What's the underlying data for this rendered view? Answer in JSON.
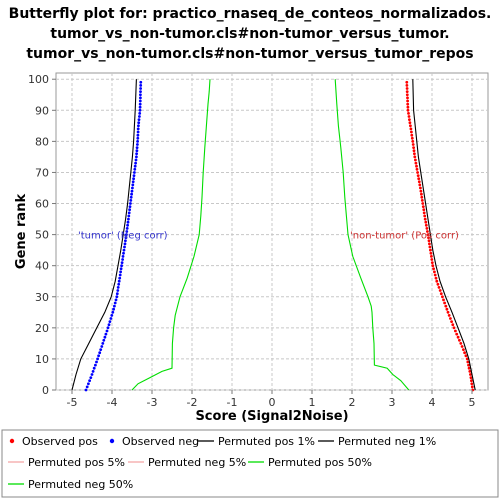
{
  "chart_data": {
    "type": "line",
    "title": [
      "Butterfly plot for: practico_rnaseq_de_conteos_normalizados.",
      "tumor_vs_non-tumor.cls#non-tumor_versus_tumor.",
      "tumor_vs_non-tumor.cls#non-tumor_versus_tumor_repos"
    ],
    "xlabel": "Score (Signal2Noise)",
    "ylabel": "Gene rank",
    "xlim": [
      -5.4,
      5.4
    ],
    "ylim": [
      0,
      102
    ],
    "xticks": [
      -5,
      -4,
      -3,
      -2,
      -1,
      0,
      1,
      2,
      3,
      4,
      5
    ],
    "yticks": [
      0,
      10,
      20,
      30,
      40,
      50,
      60,
      70,
      80,
      90,
      100
    ],
    "grid": true,
    "annotations": [
      {
        "text": "'tumor' (Neg corr)",
        "x": -4.85,
        "y": 50,
        "color": "#3333cc"
      },
      {
        "text": "'non-tumor' (Pos corr)",
        "x": 1.95,
        "y": 50,
        "color": "#cc3333"
      }
    ],
    "legend_position": "bottom",
    "series": [
      {
        "name": "Observed pos",
        "style": "points",
        "color": "#ff0000",
        "x": [
          5.02,
          4.96,
          4.88,
          4.72,
          4.55,
          4.4,
          4.26,
          4.12,
          4.02,
          3.96,
          3.9,
          3.83,
          3.77,
          3.71,
          3.64,
          3.57,
          3.52,
          3.46,
          3.4,
          3.37
        ],
        "y": [
          0,
          5,
          10,
          15,
          20,
          25,
          30,
          35,
          40,
          45,
          50,
          55,
          60,
          65,
          70,
          75,
          80,
          85,
          90,
          99
        ]
      },
      {
        "name": "Observed neg",
        "style": "points",
        "color": "#0000ff",
        "x": [
          -4.65,
          -4.5,
          -4.36,
          -4.23,
          -4.1,
          -3.98,
          -3.88,
          -3.82,
          -3.76,
          -3.7,
          -3.64,
          -3.59,
          -3.54,
          -3.49,
          -3.44,
          -3.39,
          -3.36,
          -3.34,
          -3.3,
          -3.28
        ],
        "y": [
          0,
          5,
          10,
          15,
          20,
          25,
          30,
          35,
          40,
          45,
          50,
          55,
          60,
          65,
          70,
          75,
          80,
          85,
          90,
          99
        ]
      },
      {
        "name": "Permuted pos 1%",
        "style": "line",
        "color": "#000000",
        "x": [
          5.08,
          5.0,
          4.92,
          4.8,
          4.65,
          4.5,
          4.34,
          4.2,
          4.1,
          4.02,
          3.96,
          3.9,
          3.84,
          3.78,
          3.72,
          3.66,
          3.62,
          3.58,
          3.54,
          3.52
        ],
        "y": [
          0,
          5,
          10,
          15,
          20,
          25,
          30,
          35,
          40,
          45,
          50,
          55,
          60,
          65,
          70,
          75,
          80,
          85,
          90,
          100
        ]
      },
      {
        "name": "Permuted neg 1%",
        "style": "line",
        "color": "#000000",
        "x": [
          -5.0,
          -4.9,
          -4.78,
          -4.58,
          -4.38,
          -4.18,
          -4.02,
          -3.92,
          -3.85,
          -3.78,
          -3.72,
          -3.66,
          -3.61,
          -3.57,
          -3.53,
          -3.49,
          -3.46,
          -3.44,
          -3.42,
          -3.39
        ],
        "y": [
          0,
          5,
          10,
          15,
          20,
          25,
          30,
          35,
          40,
          45,
          50,
          55,
          60,
          65,
          70,
          75,
          80,
          85,
          90,
          100
        ]
      },
      {
        "name": "Permuted pos 5%",
        "style": "line",
        "color": "#f4a8a8",
        "x": [],
        "y": []
      },
      {
        "name": "Permuted neg 5%",
        "style": "line",
        "color": "#f4a8a8",
        "x": [],
        "y": []
      },
      {
        "name": "Permuted pos 50%",
        "style": "line",
        "color": "#00dd00",
        "x": [
          3.42,
          3.22,
          3.02,
          2.88,
          2.56,
          2.55,
          2.52,
          2.5,
          2.48,
          2.4,
          2.22,
          2.02,
          1.9,
          1.86,
          1.82,
          1.78,
          1.72,
          1.66,
          1.62,
          1.58
        ],
        "y": [
          0,
          3,
          5,
          7,
          8,
          15,
          20,
          25,
          27,
          30,
          36,
          43,
          50,
          56,
          62,
          70,
          78,
          85,
          92,
          100
        ]
      },
      {
        "name": "Permuted neg 50%",
        "style": "line",
        "color": "#00dd00",
        "x": [
          -3.5,
          -3.35,
          -3.05,
          -2.75,
          -2.5,
          -2.49,
          -2.46,
          -2.42,
          -2.3,
          -2.12,
          -1.95,
          -1.82,
          -1.78,
          -1.75,
          -1.72,
          -1.68,
          -1.64,
          -1.6,
          -1.57,
          -1.55
        ],
        "y": [
          0,
          2,
          4,
          6,
          7,
          15,
          20,
          24,
          30,
          36,
          43,
          50,
          56,
          62,
          70,
          78,
          85,
          92,
          96,
          100
        ]
      }
    ]
  }
}
